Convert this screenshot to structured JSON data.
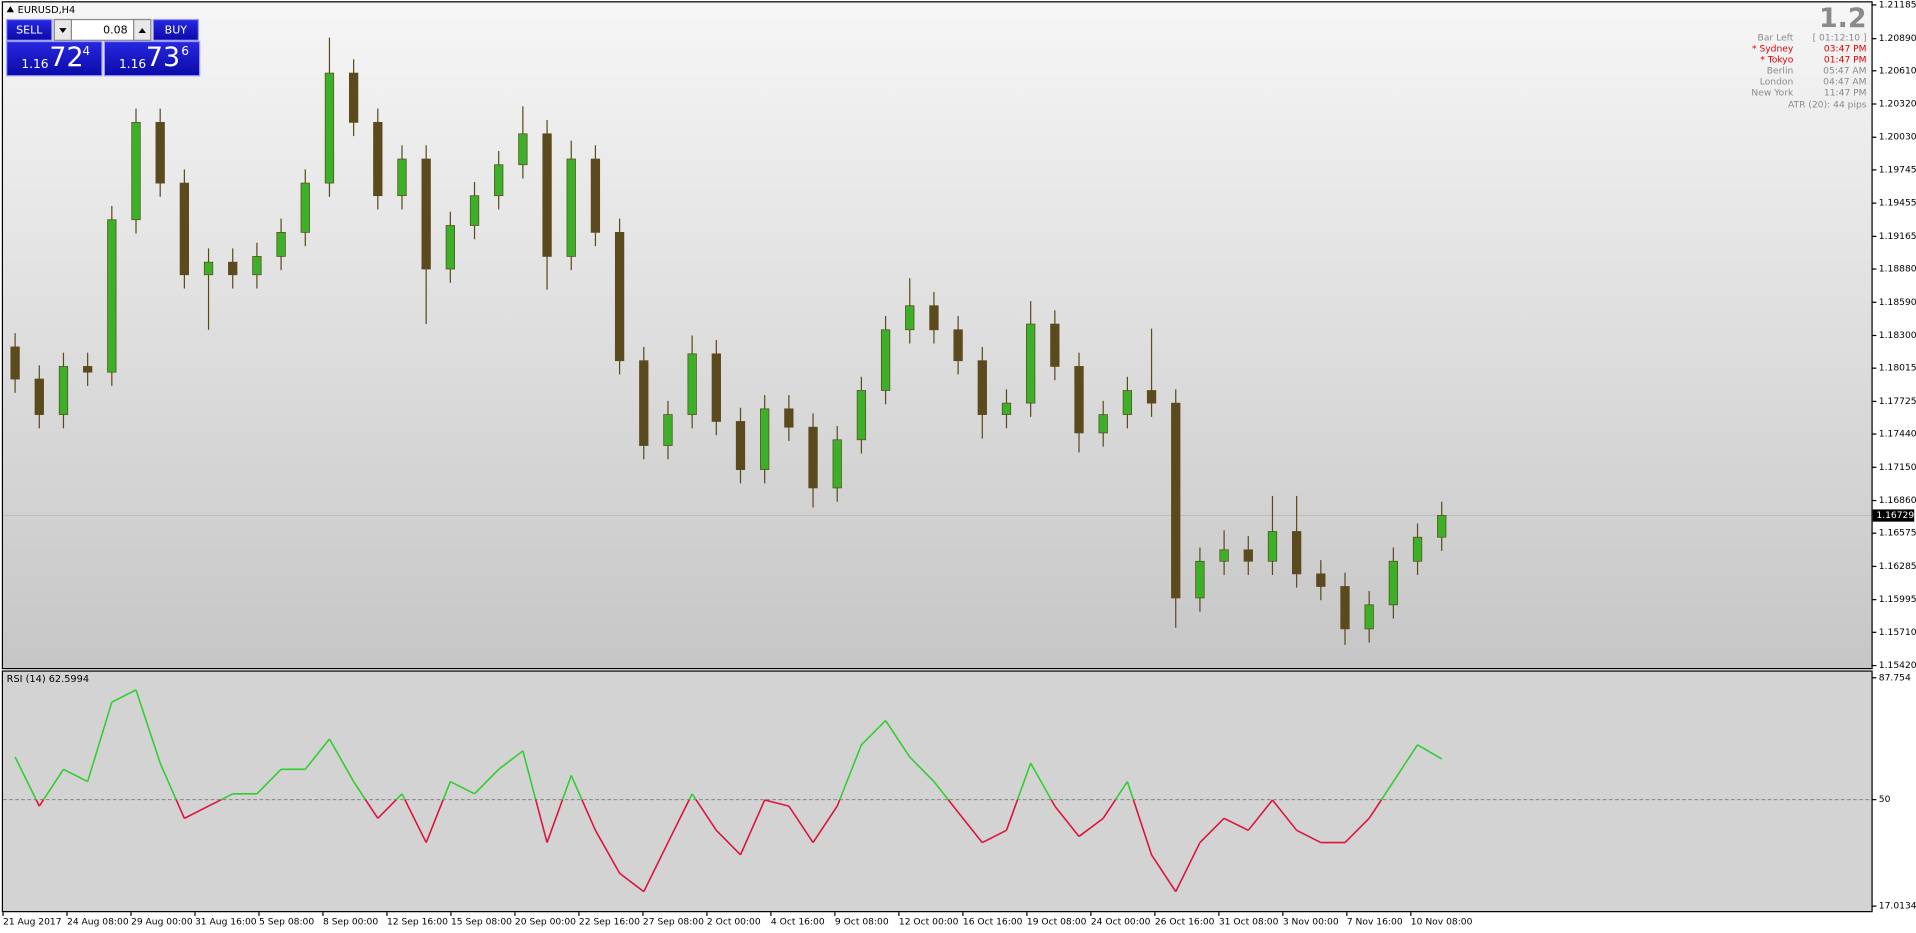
{
  "window": {
    "symbol": "EURUSD,H4"
  },
  "trade_panel": {
    "sell": "SELL",
    "buy": "BUY",
    "lot": "0.08",
    "bid": {
      "big": "1.16",
      "pips": "72",
      "point": "4"
    },
    "ask": {
      "big": "1.16",
      "pips": "73",
      "point": "6"
    }
  },
  "info": {
    "big": "1.2",
    "rows": [
      {
        "name": "Bar Left",
        "time": "[ 01:12:10 ]",
        "color": "#8a8a8a"
      },
      {
        "name": "* Sydney",
        "time": "03:47 PM",
        "color": "#e00000"
      },
      {
        "name": "* Tokyo",
        "time": "01:47 PM",
        "color": "#e00000"
      },
      {
        "name": "Berlin",
        "time": "05:47 AM",
        "color": "#8a8a8a"
      },
      {
        "name": "London",
        "time": "04:47 AM",
        "color": "#8a8a8a"
      },
      {
        "name": "New York",
        "time": "11:47 PM",
        "color": "#8a8a8a"
      }
    ],
    "atr": "ATR (20): 44 pips"
  },
  "chart_data": [
    {
      "type": "candlestick",
      "open": [
        1.182,
        1.1792,
        1.1761,
        1.1803,
        1.1798,
        1.1931,
        1.2016,
        1.1963,
        1.1883,
        1.1894,
        1.1883,
        1.1899,
        1.192,
        1.1963,
        1.2059,
        1.2016,
        1.1952,
        1.1984,
        1.1888,
        1.1926,
        1.1952,
        1.1979,
        1.2006,
        1.1899,
        1.1984,
        1.192,
        1.1808,
        1.1734,
        1.1761,
        1.1814,
        1.1755,
        1.1713,
        1.1766,
        1.175,
        1.1697,
        1.1739,
        1.1782,
        1.1835,
        1.1856,
        1.1835,
        1.1808,
        1.1761,
        1.1771,
        1.184,
        1.1803,
        1.1745,
        1.1761,
        1.1782,
        1.1771,
        1.1601,
        1.1633,
        1.1643,
        1.1633,
        1.1659,
        1.1622,
        1.1611,
        1.1574,
        1.1595,
        1.1633,
        1.1654
      ],
      "high": [
        1.1832,
        1.1804,
        1.1815,
        1.1815,
        1.1943,
        1.2028,
        1.2028,
        1.1975,
        1.1906,
        1.1906,
        1.1911,
        1.1932,
        1.1975,
        1.209,
        1.2071,
        1.2028,
        1.1996,
        1.1996,
        1.1938,
        1.1964,
        1.1991,
        1.203,
        1.2018,
        1.2,
        1.1996,
        1.1932,
        1.182,
        1.1773,
        1.183,
        1.1826,
        1.1767,
        1.1778,
        1.1778,
        1.1762,
        1.1751,
        1.1794,
        1.1847,
        1.188,
        1.1868,
        1.1847,
        1.182,
        1.1783,
        1.186,
        1.1852,
        1.1815,
        1.1773,
        1.1794,
        1.1836,
        1.1783,
        1.1645,
        1.166,
        1.1655,
        1.169,
        1.169,
        1.1634,
        1.1623,
        1.1607,
        1.1645,
        1.1666,
        1.1685
      ],
      "low": [
        1.178,
        1.1749,
        1.1749,
        1.1786,
        1.1786,
        1.1919,
        1.1951,
        1.1871,
        1.1835,
        1.1871,
        1.1871,
        1.1887,
        1.1908,
        1.1951,
        1.2004,
        1.194,
        1.194,
        1.184,
        1.1876,
        1.1914,
        1.194,
        1.1967,
        1.187,
        1.1887,
        1.1908,
        1.1796,
        1.1722,
        1.1722,
        1.1749,
        1.1743,
        1.1701,
        1.1701,
        1.1738,
        1.168,
        1.1685,
        1.1727,
        1.177,
        1.1823,
        1.1823,
        1.1796,
        1.174,
        1.1749,
        1.1759,
        1.1791,
        1.1728,
        1.1733,
        1.1749,
        1.1759,
        1.1575,
        1.1589,
        1.1621,
        1.1621,
        1.1621,
        1.161,
        1.1599,
        1.156,
        1.1562,
        1.1583,
        1.1621,
        1.1642
      ],
      "close": [
        1.1792,
        1.1761,
        1.1803,
        1.1798,
        1.1931,
        1.2016,
        1.1963,
        1.1883,
        1.1894,
        1.1883,
        1.1899,
        1.192,
        1.1963,
        1.2059,
        1.2016,
        1.1952,
        1.1984,
        1.1888,
        1.1926,
        1.1952,
        1.1979,
        1.2006,
        1.1899,
        1.1984,
        1.192,
        1.1808,
        1.1734,
        1.1761,
        1.1814,
        1.1755,
        1.1713,
        1.1766,
        1.175,
        1.1697,
        1.1739,
        1.1782,
        1.1835,
        1.1856,
        1.1835,
        1.1808,
        1.1761,
        1.1771,
        1.184,
        1.1803,
        1.1745,
        1.1761,
        1.1782,
        1.1771,
        1.1601,
        1.1633,
        1.1643,
        1.1633,
        1.1659,
        1.1622,
        1.1611,
        1.1574,
        1.1595,
        1.1633,
        1.1654,
        1.1673
      ],
      "ylim": [
        1.1542,
        1.21185
      ],
      "yticks": [
        1.21185,
        {
          "value": 1.2089,
          "label": "1.20890"
        },
        {
          "value": 1.2061,
          "label": "1.20610"
        },
        {
          "value": 1.2032,
          "label": "1.20320"
        },
        {
          "value": 1.2003,
          "label": "1.20030"
        },
        1.19745,
        1.19455,
        1.19165,
        {
          "value": 1.1888,
          "label": "1.18880"
        },
        {
          "value": 1.1859,
          "label": "1.18590"
        },
        {
          "value": 1.183,
          "label": "1.18300"
        },
        1.18015,
        1.17725,
        {
          "value": 1.1744,
          "label": "1.17440"
        },
        {
          "value": 1.1715,
          "label": "1.17150"
        },
        {
          "value": 1.1686,
          "label": "1.16860"
        },
        1.16575,
        1.16285,
        1.15995,
        {
          "value": 1.1571,
          "label": "1.15710"
        },
        {
          "value": 1.1542,
          "label": "1.15420"
        }
      ],
      "current_price": 1.16729,
      "bull_color": "#3cb028",
      "bear_color": "#5a4a1e",
      "wick_color": "#5a4a1e"
    },
    {
      "type": "line",
      "title": "RSI (14) 62.5994",
      "values": [
        63.2,
        48,
        59.4,
        55.6,
        80.2,
        84,
        61.3,
        44.2,
        48,
        51.8,
        51.8,
        59.4,
        59.4,
        68.8,
        55.6,
        44.2,
        51.8,
        36.7,
        55.6,
        51.8,
        59.4,
        65.1,
        36.7,
        57.5,
        40.5,
        27.2,
        21.5,
        36.7,
        51.8,
        40.5,
        32.9,
        49.9,
        48,
        36.7,
        48,
        67,
        74.5,
        63.2,
        55.6,
        46.1,
        36.7,
        40.5,
        61.3,
        48,
        38.6,
        44.2,
        55.6,
        32.9,
        21.5,
        36.7,
        44.2,
        40.5,
        49.9,
        40.5,
        36.7,
        36.7,
        44.2,
        55.6,
        67,
        62.5994
      ],
      "ylim": [
        17.0134,
        87.754
      ],
      "yticks": [
        87.754,
        50,
        17.0134
      ],
      "level": 50,
      "up_color": "#32cd32",
      "down_color": "#dc143c",
      "x_labels": [
        "21 Aug 2017",
        "24 Aug 08:00",
        "29 Aug 00:00",
        "31 Aug 16:00",
        "5 Sep 08:00",
        "8 Sep 00:00",
        "12 Sep 16:00",
        "15 Sep 08:00",
        "20 Sep 00:00",
        "22 Sep 16:00",
        "27 Sep 08:00",
        "2 Oct 00:00",
        "4 Oct 16:00",
        "9 Oct 08:00",
        "12 Oct 00:00",
        "16 Oct 16:00",
        "19 Oct 08:00",
        "24 Oct 00:00",
        "26 Oct 16:00",
        "31 Oct 08:00",
        "3 Nov 00:00",
        "7 Nov 16:00",
        "10 Nov 08:00"
      ]
    }
  ]
}
